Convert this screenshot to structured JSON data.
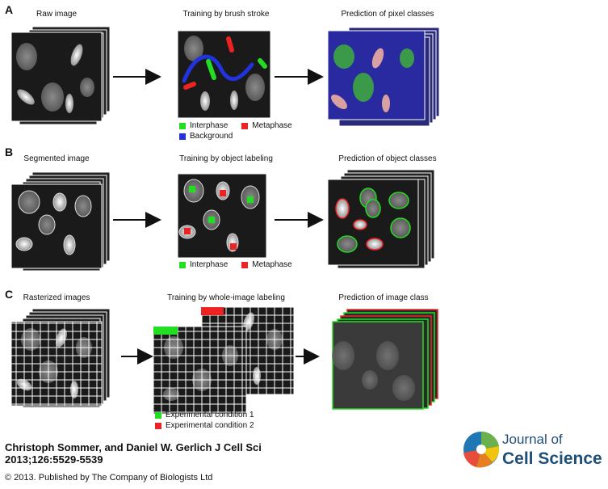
{
  "panels": [
    {
      "letter": "A",
      "captions": {
        "left": "Raw image",
        "middle": "Training by brush stroke",
        "right": "Prediction of pixel classes"
      },
      "legend": [
        {
          "label": "Interphase",
          "color": "#22dd22"
        },
        {
          "label": "Metaphase",
          "color": "#ee2222"
        },
        {
          "label": "Background",
          "color": "#2233dd"
        }
      ]
    },
    {
      "letter": "B",
      "captions": {
        "left": "Segmented image",
        "middle": "Training by object labeling",
        "right": "Prediction of object classes"
      },
      "legend": [
        {
          "label": "Interphase",
          "color": "#22dd22"
        },
        {
          "label": "Metaphase",
          "color": "#ee2222"
        }
      ]
    },
    {
      "letter": "C",
      "captions": {
        "left": "Rasterized images",
        "middle": "Training by whole-image labeling",
        "right": "Prediction of image class"
      },
      "legend": [
        {
          "label": "Experimental condition 1",
          "color": "#22dd22"
        },
        {
          "label": "Experimental condition 2",
          "color": "#ee2222"
        }
      ]
    }
  ],
  "citation": {
    "line1": "Christoph Sommer, and Daniel W. Gerlich J Cell Sci",
    "line2": "2013;126:5529-5539"
  },
  "copyright": "© 2013. Published by The Company of Biologists Ltd",
  "logo": {
    "line1": "Journal of",
    "line2": "Cell Science"
  },
  "colors": {
    "interphase": "#22dd22",
    "metaphase": "#ee2222",
    "background": "#2233dd",
    "image_bg": "#1a1a1a",
    "journal_blue": "#1f4e79"
  }
}
